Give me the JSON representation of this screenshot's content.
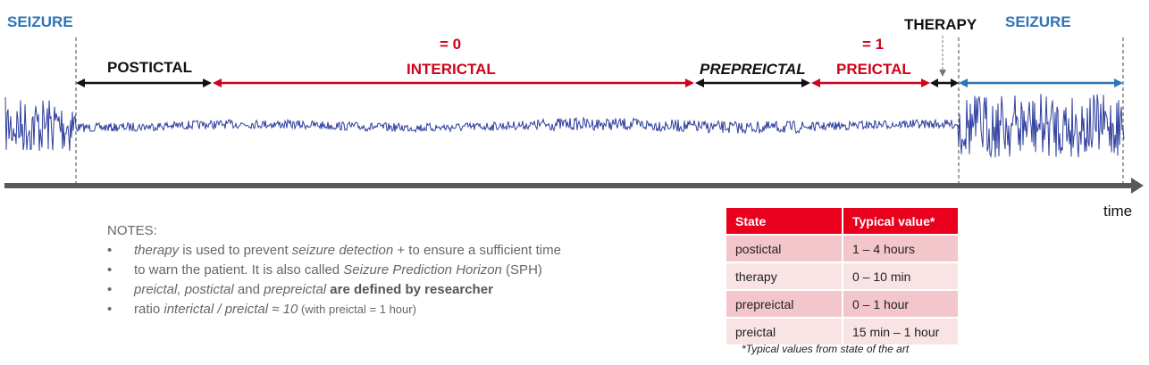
{
  "labels": {
    "seizure_left": "SEIZURE",
    "seizure_right": "SEIZURE",
    "therapy": "THERAPY",
    "postictal": "POSTICTAL",
    "interictal_value": "= 0",
    "interictal": "INTERICTAL",
    "prepreictal": "PREPREICTAL",
    "preictal_value": "= 1",
    "preictal": "PREICTAL",
    "time": "time"
  },
  "colors": {
    "seizure": "#2e75b6",
    "label_red": "#d0021b",
    "signal": "#2f3f9e",
    "timeline": "#595959",
    "table_header": "#e8001c"
  },
  "notes": {
    "title": "NOTES:",
    "item1": {
      "p1": "therapy",
      "p2": " is used to prevent ",
      "p3": "seizure detection",
      "p4": " + to ensure a sufficient time",
      "p5": "to warn the patient. It is also called ",
      "p6": "Seizure Prediction Horizon",
      "p7": " (SPH)"
    },
    "item2": {
      "p1": "preictal, postictal",
      "p2": " and ",
      "p3": "prepreictal",
      "p4": " are defined by researcher"
    },
    "item3": {
      "p1": "ratio ",
      "p2": "interictal / preictal ≈ 10",
      "p3": "  (with preictal = 1 hour)"
    }
  },
  "table": {
    "headers": [
      "State",
      "Typical value*"
    ],
    "rows": [
      [
        "postictal",
        "1 – 4 hours"
      ],
      [
        "therapy",
        "0 – 10 min"
      ],
      [
        "prepreictal",
        "0 – 1 hour"
      ],
      [
        "preictal",
        "15 min – 1 hour"
      ]
    ],
    "footnote": "*Typical values from state of the art"
  }
}
